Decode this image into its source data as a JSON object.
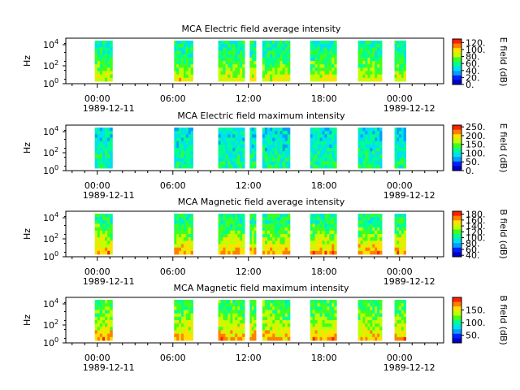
{
  "colormap": [
    "#0000c8",
    "#0020ff",
    "#00a0ff",
    "#00e0f0",
    "#00ff90",
    "#40ff20",
    "#c0ff00",
    "#ffe000",
    "#ff8000",
    "#ff2000"
  ],
  "chart_data": [
    {
      "type": "heatmap",
      "title": "MCA  Electric field average intensity",
      "ylabel": "Hz",
      "colorbar_label": "E field (dB)",
      "y_ticks": [
        "10",
        "10",
        "10"
      ],
      "y_tick_exps": [
        "0",
        "2",
        "4"
      ],
      "cbar_ticks": [
        "0.",
        "20.",
        "40.",
        "60.",
        "80.",
        "100.",
        "120."
      ],
      "cbar_range": [
        0,
        130
      ],
      "x_ticks": [
        "00:00",
        "06:00",
        "12:00",
        "18:00",
        "00:00"
      ],
      "x_dates": [
        "1989-12-11",
        "1989-12-12"
      ],
      "x_range_hours": [
        -2.5,
        27.5
      ],
      "data_intervals_hours": [
        [
          -0.2,
          1.2
        ],
        [
          6.1,
          7.6
        ],
        [
          9.6,
          11.7
        ],
        [
          12.1,
          12.6
        ],
        [
          13.1,
          15.3
        ],
        [
          16.9,
          19.0
        ],
        [
          20.7,
          22.6
        ],
        [
          23.6,
          24.5
        ]
      ],
      "intensity_low_freq": 90,
      "intensity_high_freq": 55
    },
    {
      "type": "heatmap",
      "title": "MCA  Electric field maximum intensity",
      "ylabel": "Hz",
      "colorbar_label": "E field (dB)",
      "y_ticks": [
        "10",
        "10",
        "10"
      ],
      "y_tick_exps": [
        "0",
        "2",
        "4"
      ],
      "cbar_ticks": [
        "0.",
        "50.",
        "100.",
        "150.",
        "200.",
        "250."
      ],
      "cbar_range": [
        0,
        260
      ],
      "x_ticks": [
        "00:00",
        "06:00",
        "12:00",
        "18:00",
        "00:00"
      ],
      "x_dates": [
        "1989-12-11",
        "1989-12-12"
      ],
      "x_range_hours": [
        -2.5,
        27.5
      ],
      "data_intervals_hours": [
        [
          -0.2,
          1.2
        ],
        [
          6.1,
          7.6
        ],
        [
          9.6,
          11.7
        ],
        [
          12.1,
          12.6
        ],
        [
          13.1,
          15.3
        ],
        [
          16.9,
          19.0
        ],
        [
          20.7,
          22.6
        ],
        [
          23.6,
          24.5
        ]
      ],
      "intensity_low_freq": 120,
      "intensity_high_freq": 95
    },
    {
      "type": "heatmap",
      "title": "MCA  Magnetic field average intensity",
      "ylabel": "Hz",
      "colorbar_label": "B field (dB)",
      "y_ticks": [
        "10",
        "10",
        "10"
      ],
      "y_tick_exps": [
        "0",
        "2",
        "4"
      ],
      "cbar_ticks": [
        "40.",
        "60.",
        "80.",
        "100.",
        "120.",
        "140.",
        "160.",
        "180."
      ],
      "cbar_range": [
        35,
        190
      ],
      "x_ticks": [
        "00:00",
        "06:00",
        "12:00",
        "18:00",
        "00:00"
      ],
      "x_dates": [
        "1989-12-11",
        "1989-12-12"
      ],
      "x_range_hours": [
        -2.5,
        27.5
      ],
      "data_intervals_hours": [
        [
          -0.2,
          1.2
        ],
        [
          6.1,
          7.6
        ],
        [
          9.6,
          11.7
        ],
        [
          12.1,
          12.6
        ],
        [
          13.1,
          15.3
        ],
        [
          16.9,
          19.0
        ],
        [
          20.7,
          22.6
        ],
        [
          23.6,
          24.5
        ]
      ],
      "intensity_low_freq": 160,
      "intensity_high_freq": 105
    },
    {
      "type": "heatmap",
      "title": "MCA  Magnetic field maximum intensity",
      "ylabel": "Hz",
      "colorbar_label": "B field (dB)",
      "y_ticks": [
        "10",
        "10",
        "10"
      ],
      "y_tick_exps": [
        "0",
        "2",
        "4"
      ],
      "cbar_ticks": [
        "50.",
        "100.",
        "150."
      ],
      "cbar_range": [
        20,
        200
      ],
      "x_ticks": [
        "00:00",
        "06:00",
        "12:00",
        "18:00",
        "00:00"
      ],
      "x_dates": [
        "1989-12-11",
        "1989-12-12"
      ],
      "x_range_hours": [
        -2.5,
        27.5
      ],
      "data_intervals_hours": [
        [
          -0.2,
          1.2
        ],
        [
          6.1,
          7.6
        ],
        [
          9.6,
          11.7
        ],
        [
          12.1,
          12.6
        ],
        [
          13.1,
          15.3
        ],
        [
          16.9,
          19.0
        ],
        [
          20.7,
          22.6
        ],
        [
          23.6,
          24.5
        ]
      ],
      "intensity_low_freq": 165,
      "intensity_high_freq": 110
    }
  ]
}
